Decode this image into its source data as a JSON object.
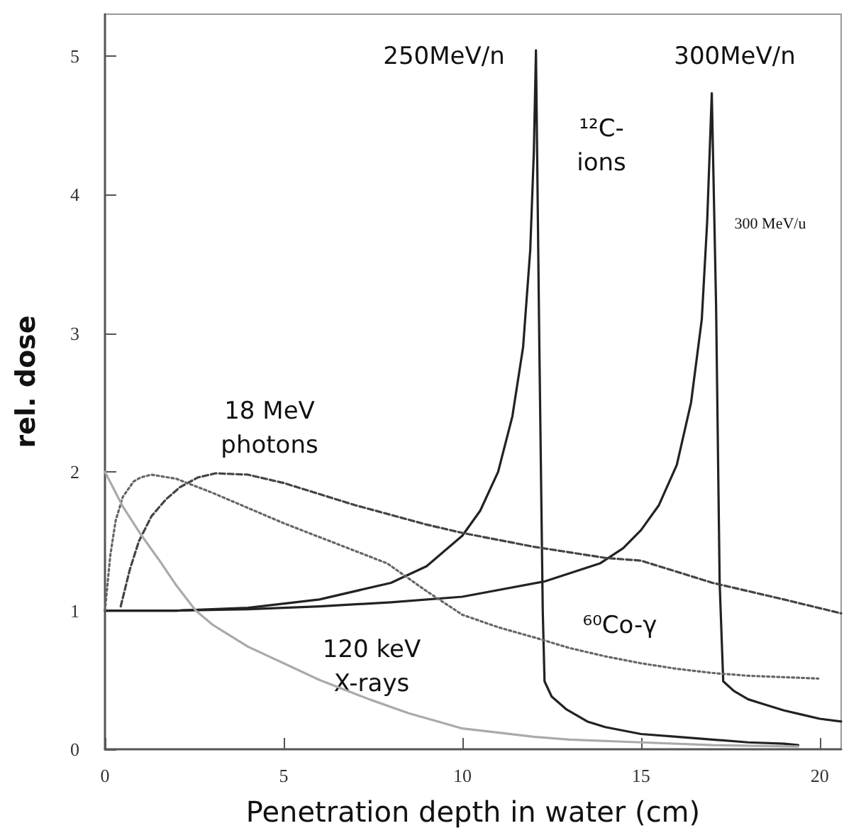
{
  "chart_data": {
    "type": "line",
    "xlabel": "Penetration depth in water (cm)",
    "ylabel": "rel. dose",
    "xlim": [
      0,
      20.6
    ],
    "xticks": [
      0,
      5,
      10,
      15,
      20
    ],
    "ylim": [
      0,
      5.3
    ],
    "yticks": [
      0,
      1,
      2,
      3,
      4,
      5
    ],
    "series": [
      {
        "name": "250MeV/n",
        "color": "#222222",
        "line_style": "solid",
        "x": [
          0,
          2,
          4,
          6,
          8,
          9,
          10,
          10.5,
          11,
          11.4,
          11.7,
          11.9,
          12.0,
          12.06,
          12.15,
          12.25,
          12.3,
          12.5,
          12.9,
          13.5,
          14,
          15,
          16,
          17,
          18,
          19,
          19.4
        ],
        "values": [
          1,
          1,
          1.02,
          1.08,
          1.2,
          1.32,
          1.54,
          1.72,
          2.0,
          2.4,
          2.9,
          3.6,
          4.3,
          5.04,
          3.0,
          1.0,
          0.49,
          0.38,
          0.29,
          0.2,
          0.16,
          0.11,
          0.09,
          0.07,
          0.05,
          0.04,
          0.03
        ]
      },
      {
        "name": "300MeV/n",
        "color": "#222222",
        "line_style": "solid",
        "x": [
          0,
          2,
          4,
          6,
          8,
          10,
          12.3,
          13.85,
          14.5,
          15,
          15.5,
          16,
          16.4,
          16.7,
          16.85,
          16.98,
          17.1,
          17.2,
          17.3,
          17.6,
          18,
          18.5,
          19,
          19.5,
          20,
          20.6
        ],
        "values": [
          1,
          1,
          1.01,
          1.03,
          1.06,
          1.1,
          1.21,
          1.34,
          1.45,
          1.58,
          1.76,
          2.05,
          2.5,
          3.1,
          3.8,
          4.73,
          3.2,
          1.2,
          0.49,
          0.42,
          0.36,
          0.32,
          0.28,
          0.25,
          0.22,
          0.2
        ]
      },
      {
        "name": "18 MeV\nphotons",
        "color": "#444444",
        "line_style": "dashed",
        "x": [
          0.44,
          0.7,
          0.95,
          1.3,
          1.7,
          2.1,
          2.6,
          3.1,
          4,
          5,
          6,
          7,
          8,
          9,
          10,
          12,
          14,
          15,
          17,
          19,
          20.6
        ],
        "values": [
          1.03,
          1.3,
          1.5,
          1.68,
          1.8,
          1.89,
          1.96,
          1.99,
          1.98,
          1.92,
          1.84,
          1.76,
          1.69,
          1.62,
          1.56,
          1.46,
          1.38,
          1.36,
          1.2,
          1.08,
          0.98
        ]
      },
      {
        "name": "⁶⁰Co-γ",
        "color": "#666666",
        "line_style": "dotted",
        "x": [
          0,
          0.15,
          0.3,
          0.5,
          0.8,
          1.0,
          1.3,
          2,
          3,
          4,
          5,
          6,
          7,
          7.9,
          9,
          10,
          11,
          12.1,
          13,
          14,
          15,
          16,
          17,
          18,
          19,
          19.96
        ],
        "values": [
          1,
          1.4,
          1.65,
          1.82,
          1.93,
          1.96,
          1.98,
          1.95,
          1.85,
          1.74,
          1.63,
          1.53,
          1.43,
          1.34,
          1.14,
          0.97,
          0.88,
          0.8,
          0.73,
          0.67,
          0.62,
          0.58,
          0.55,
          0.53,
          0.52,
          0.51
        ]
      },
      {
        "name": "120 keV\nX-rays",
        "color": "#aaaaaa",
        "line_style": "solid",
        "x": [
          0,
          0.5,
          1,
          1.5,
          2,
          2.54,
          3,
          4,
          5,
          6,
          7.4,
          8.5,
          10,
          12,
          13,
          15,
          17,
          19.4
        ],
        "values": [
          2.0,
          1.75,
          1.55,
          1.37,
          1.18,
          1.0,
          0.9,
          0.74,
          0.62,
          0.5,
          0.36,
          0.26,
          0.15,
          0.09,
          0.07,
          0.05,
          0.03,
          0.02
        ]
      }
    ],
    "annotations": [
      "¹²C-\nions",
      "300 MeV/u"
    ]
  }
}
